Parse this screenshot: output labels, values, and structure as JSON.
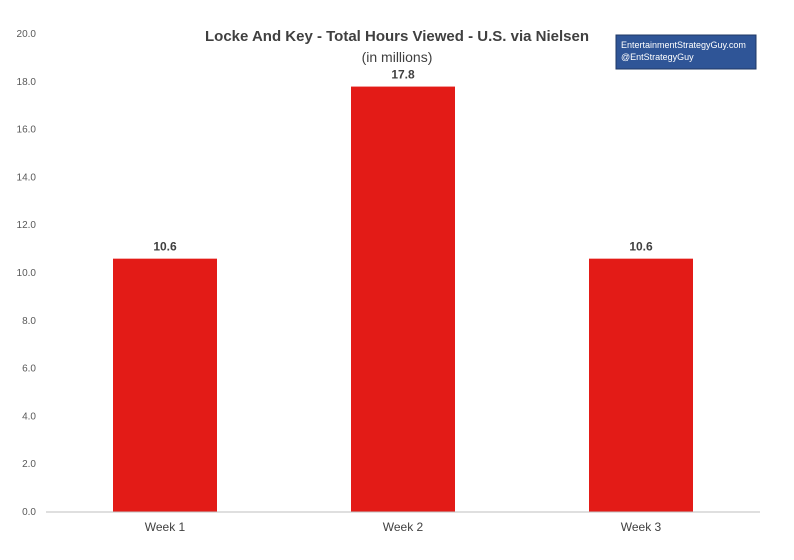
{
  "chart_data": {
    "type": "bar",
    "title": "Locke And Key - Total Hours Viewed - U.S. via Nielsen",
    "subtitle": "(in millions)",
    "categories": [
      "Week 1",
      "Week 2",
      "Week 3"
    ],
    "series": [
      {
        "values": [
          10.6,
          17.8,
          10.6
        ]
      }
    ],
    "data_labels": [
      "10.6",
      "17.8",
      "10.6"
    ],
    "y_ticks": [
      "0.0",
      "2.0",
      "4.0",
      "6.0",
      "8.0",
      "10.0",
      "12.0",
      "14.0",
      "16.0",
      "18.0",
      "20.0"
    ],
    "ylim": [
      0,
      20
    ],
    "grid": false,
    "legend": "none",
    "colors": {
      "bar": "#e31b17",
      "axis": "#bfbfbf",
      "credit_box": "#2f5597",
      "credit_border": "#1f3864"
    }
  },
  "credit_box": {
    "line1": "EntertainmentStrategyGuy.com",
    "line2": "@EntStrategyGuy"
  }
}
